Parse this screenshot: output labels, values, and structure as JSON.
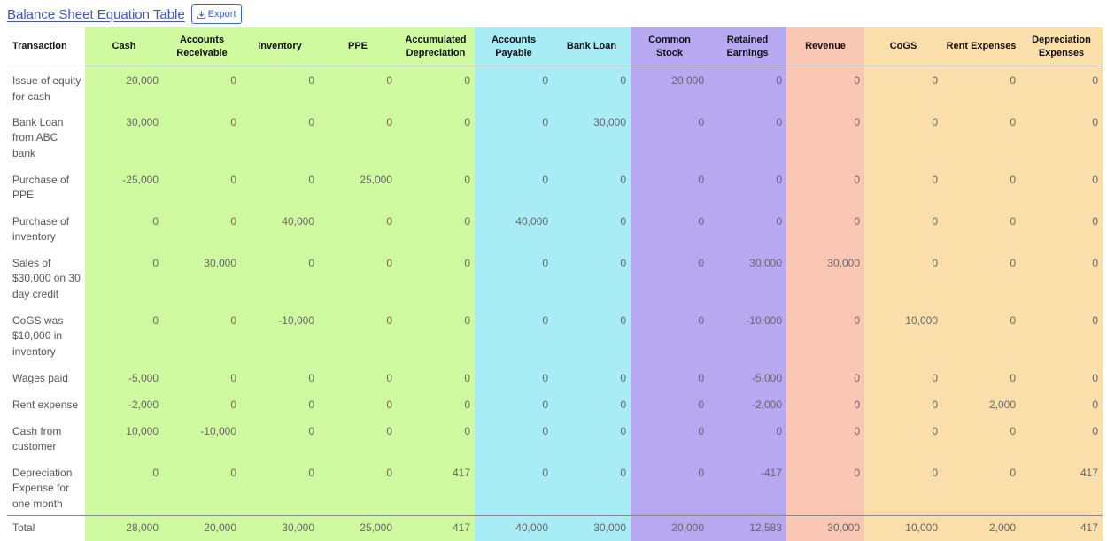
{
  "header": {
    "title": "Balance Sheet Equation Table",
    "export_label": "Export"
  },
  "table": {
    "columns": [
      "Transaction",
      "Cash",
      "Accounts Receivable",
      "Inventory",
      "PPE",
      "Accumulated Depreciation",
      "Accounts Payable",
      "Bank Loan",
      "Common Stock",
      "Retained Earnings",
      "Revenue",
      "CoGS",
      "Rent Expenses",
      "Depreciation Expenses"
    ],
    "column_colors": [
      "#ffffff",
      "#d0fa9f",
      "#d0fa9f",
      "#d0fa9f",
      "#d0fa9f",
      "#d0fa9f",
      "#a8ecf5",
      "#a8ecf5",
      "#b6a8f1",
      "#b6a8f1",
      "#f9c7b4",
      "#fbdfab",
      "#fbdfab",
      "#fbdfab"
    ],
    "rows": [
      [
        "Issue of equity for cash",
        "20,000",
        "0",
        "0",
        "0",
        "0",
        "0",
        "0",
        "20,000",
        "0",
        "0",
        "0",
        "0",
        "0"
      ],
      [
        "Bank Loan from ABC bank",
        "30,000",
        "0",
        "0",
        "0",
        "0",
        "0",
        "30,000",
        "0",
        "0",
        "0",
        "0",
        "0",
        "0"
      ],
      [
        "Purchase of PPE",
        "-25,000",
        "0",
        "0",
        "25,000",
        "0",
        "0",
        "0",
        "0",
        "0",
        "0",
        "0",
        "0",
        "0"
      ],
      [
        "Purchase of inventory",
        "0",
        "0",
        "40,000",
        "0",
        "0",
        "40,000",
        "0",
        "0",
        "0",
        "0",
        "0",
        "0",
        "0"
      ],
      [
        "Sales of $30,000 on 30 day credit",
        "0",
        "30,000",
        "0",
        "0",
        "0",
        "0",
        "0",
        "0",
        "30,000",
        "30,000",
        "0",
        "0",
        "0"
      ],
      [
        "CoGS was $10,000 in inventory",
        "0",
        "0",
        "-10,000",
        "0",
        "0",
        "0",
        "0",
        "0",
        "-10,000",
        "0",
        "10,000",
        "0",
        "0"
      ],
      [
        "Wages paid",
        "-5,000",
        "0",
        "0",
        "0",
        "0",
        "0",
        "0",
        "0",
        "-5,000",
        "0",
        "0",
        "0",
        "0"
      ],
      [
        "Rent expense",
        "-2,000",
        "0",
        "0",
        "0",
        "0",
        "0",
        "0",
        "0",
        "-2,000",
        "0",
        "0",
        "2,000",
        "0"
      ],
      [
        "Cash from customer",
        "10,000",
        "-10,000",
        "0",
        "0",
        "0",
        "0",
        "0",
        "0",
        "0",
        "0",
        "0",
        "0",
        "0"
      ],
      [
        "Depreciation Expense for one month",
        "0",
        "0",
        "0",
        "0",
        "417",
        "0",
        "0",
        "0",
        "-417",
        "0",
        "0",
        "0",
        "417"
      ]
    ],
    "total": [
      "Total",
      "28,000",
      "20,000",
      "30,000",
      "25,000",
      "417",
      "40,000",
      "30,000",
      "20,000",
      "12,583",
      "30,000",
      "10,000",
      "2,000",
      "417"
    ]
  }
}
